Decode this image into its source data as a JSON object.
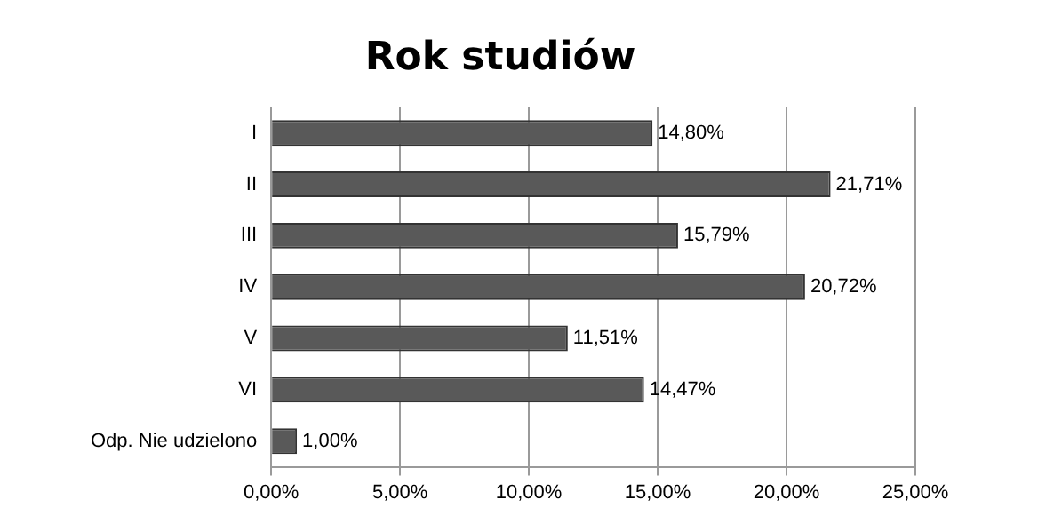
{
  "chart_data": {
    "type": "bar",
    "orientation": "horizontal",
    "title": "Rok studiów",
    "categories": [
      "I",
      "II",
      "III",
      "IV",
      "V",
      "VI",
      "Odp. Nie udzielono"
    ],
    "values": [
      14.8,
      21.71,
      15.79,
      20.72,
      11.51,
      14.47,
      1.0
    ],
    "value_labels": [
      "14,80%",
      "21,71%",
      "15,79%",
      "20,72%",
      "11,51%",
      "14,47%",
      "1,00%"
    ],
    "color": "#595959",
    "xlim": [
      0,
      25
    ],
    "xticks": [
      {
        "value": 0,
        "label": "0,00%"
      },
      {
        "value": 5,
        "label": "5,00%"
      },
      {
        "value": 10,
        "label": "10,00%"
      },
      {
        "value": 15,
        "label": "15,00%"
      },
      {
        "value": 20,
        "label": "20,00%"
      },
      {
        "value": 25,
        "label": "25,00%"
      }
    ],
    "grid": "x"
  }
}
